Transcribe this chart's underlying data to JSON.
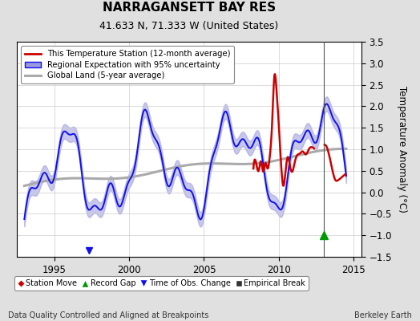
{
  "title": "NARRAGANSETT BAY RES",
  "subtitle": "41.633 N, 71.333 W (United States)",
  "xlabel_bottom": "Data Quality Controlled and Aligned at Breakpoints",
  "xlabel_right": "Berkeley Earth",
  "ylabel": "Temperature Anomaly (°C)",
  "xlim": [
    1992.5,
    2015.5
  ],
  "ylim": [
    -1.5,
    3.5
  ],
  "yticks": [
    -1.5,
    -1.0,
    -0.5,
    0.0,
    0.5,
    1.0,
    1.5,
    2.0,
    2.5,
    3.0,
    3.5
  ],
  "xticks": [
    1995,
    2000,
    2005,
    2010,
    2015
  ],
  "background_color": "#e0e0e0",
  "plot_bg_color": "#ffffff",
  "blue_line_color": "#1010ee",
  "blue_fill_color": "#9999dd",
  "red_line_color": "#cc0000",
  "gray_line_color": "#aaaaaa",
  "vline_x": 2013.0,
  "record_gap_x": 2013.0,
  "record_gap_y": -1.0,
  "time_obs_x": 1997.3,
  "time_obs_y": -1.35,
  "legend_labels": [
    "This Temperature Station (12-month average)",
    "Regional Expectation with 95% uncertainty",
    "Global Land (5-year average)"
  ],
  "bottom_legend_labels": [
    "Station Move",
    "Record Gap",
    "Time of Obs. Change",
    "Empirical Break"
  ]
}
